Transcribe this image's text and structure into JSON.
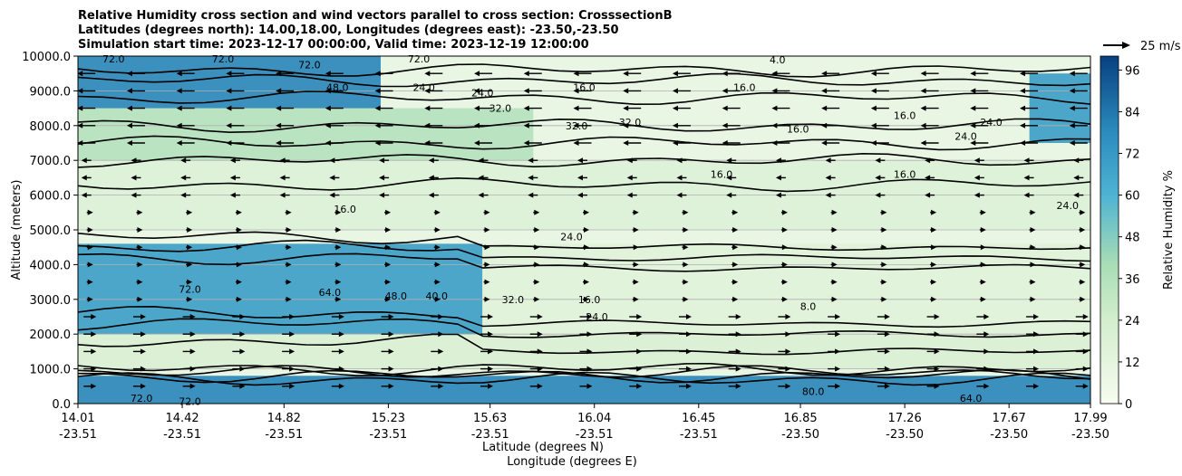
{
  "chart_data": {
    "type": "heatmap",
    "title_lines": [
      "Relative Humidity cross section and wind vectors parallel to cross section: CrosssectionB",
      "Latitudes (degrees north): 14.00,18.00, Longitudes (degrees east): -23.50,-23.50",
      "Simulation start time: 2023-12-17 00:00:00, Valid time: 2023-12-19 12:00:00"
    ],
    "xlabel_lat": "Latitude (degrees N)",
    "xlabel_lon": "Longitude (degrees E)",
    "ylabel": "Altitude (meters)",
    "xlim": [
      14.01,
      17.99
    ],
    "ylim": [
      0,
      10000
    ],
    "grid": "horizontal",
    "x_ticks": [
      {
        "lat": "14.01",
        "lon": "-23.51"
      },
      {
        "lat": "14.42",
        "lon": "-23.51"
      },
      {
        "lat": "14.82",
        "lon": "-23.51"
      },
      {
        "lat": "15.23",
        "lon": "-23.51"
      },
      {
        "lat": "15.63",
        "lon": "-23.51"
      },
      {
        "lat": "16.04",
        "lon": "-23.51"
      },
      {
        "lat": "16.45",
        "lon": "-23.51"
      },
      {
        "lat": "16.85",
        "lon": "-23.50"
      },
      {
        "lat": "17.26",
        "lon": "-23.50"
      },
      {
        "lat": "17.67",
        "lon": "-23.50"
      },
      {
        "lat": "17.99",
        "lon": "-23.50"
      }
    ],
    "y_ticks": [
      "0.0",
      "1000.0",
      "2000.0",
      "3000.0",
      "4000.0",
      "5000.0",
      "6000.0",
      "7000.0",
      "8000.0",
      "9000.0",
      "10000.0"
    ],
    "colorbar": {
      "label": "Relative Humidity %",
      "range": [
        0,
        100
      ],
      "ticks": [
        "0",
        "12",
        "24",
        "36",
        "48",
        "60",
        "72",
        "84",
        "96"
      ]
    },
    "quiver_key": {
      "label": "25 m/s",
      "speed": 25
    },
    "humidity_bands": [
      {
        "alt_range": [
          0,
          800
        ],
        "lat_range": [
          14.01,
          17.99
        ],
        "rh": 80
      },
      {
        "alt_range": [
          1000,
          2000
        ],
        "lat_range": [
          14.01,
          17.99
        ],
        "rh": 20
      },
      {
        "alt_range": [
          2000,
          4600
        ],
        "lat_range": [
          14.01,
          15.6
        ],
        "rh": 70
      },
      {
        "alt_range": [
          2000,
          4600
        ],
        "lat_range": [
          15.6,
          17.99
        ],
        "rh": 15
      },
      {
        "alt_range": [
          5000,
          7000
        ],
        "lat_range": [
          14.01,
          17.99
        ],
        "rh": 18
      },
      {
        "alt_range": [
          7000,
          8500
        ],
        "lat_range": [
          14.01,
          15.8
        ],
        "rh": 35
      },
      {
        "alt_range": [
          8500,
          10000
        ],
        "lat_range": [
          14.01,
          15.2
        ],
        "rh": 80
      },
      {
        "alt_range": [
          7500,
          9500
        ],
        "lat_range": [
          17.75,
          17.99
        ],
        "rh": 70
      }
    ],
    "contour_labels": [
      {
        "text": "72.0",
        "lat": 14.15,
        "alt": 9920
      },
      {
        "text": "72.0",
        "lat": 14.58,
        "alt": 9920
      },
      {
        "text": "72.0",
        "lat": 14.92,
        "alt": 9750
      },
      {
        "text": "72.0",
        "lat": 15.35,
        "alt": 9920
      },
      {
        "text": "4.0",
        "lat": 16.76,
        "alt": 9900
      },
      {
        "text": "48.0",
        "lat": 15.03,
        "alt": 9100
      },
      {
        "text": "24.0",
        "lat": 15.37,
        "alt": 9100
      },
      {
        "text": "24.0",
        "lat": 15.6,
        "alt": 8950
      },
      {
        "text": "16.0",
        "lat": 16.0,
        "alt": 9100
      },
      {
        "text": "16.0",
        "lat": 16.63,
        "alt": 9100
      },
      {
        "text": "32.0",
        "lat": 15.67,
        "alt": 8500
      },
      {
        "text": "32.0",
        "lat": 15.97,
        "alt": 8000
      },
      {
        "text": "32.0",
        "lat": 16.18,
        "alt": 8100
      },
      {
        "text": "16.0",
        "lat": 16.84,
        "alt": 7900
      },
      {
        "text": "16.0",
        "lat": 17.26,
        "alt": 8300
      },
      {
        "text": "16.0",
        "lat": 16.54,
        "alt": 6600
      },
      {
        "text": "16.0",
        "lat": 17.26,
        "alt": 6600
      },
      {
        "text": "24.0",
        "lat": 17.6,
        "alt": 8100
      },
      {
        "text": "24.0",
        "lat": 17.5,
        "alt": 7700
      },
      {
        "text": "24.0",
        "lat": 17.9,
        "alt": 5700
      },
      {
        "text": "16.0",
        "lat": 15.06,
        "alt": 5600
      },
      {
        "text": "24.0",
        "lat": 15.95,
        "alt": 4800
      },
      {
        "text": "72.0",
        "lat": 14.45,
        "alt": 3300
      },
      {
        "text": "64.0",
        "lat": 15.0,
        "alt": 3200
      },
      {
        "text": "48.0",
        "lat": 15.26,
        "alt": 3100
      },
      {
        "text": "40.0",
        "lat": 15.42,
        "alt": 3100
      },
      {
        "text": "32.0",
        "lat": 15.72,
        "alt": 3000
      },
      {
        "text": "16.0",
        "lat": 16.02,
        "alt": 3000
      },
      {
        "text": "24.0",
        "lat": 16.05,
        "alt": 2500
      },
      {
        "text": "8.0",
        "lat": 16.88,
        "alt": 2800
      },
      {
        "text": "72.0",
        "lat": 14.26,
        "alt": 150
      },
      {
        "text": "72.0",
        "lat": 14.45,
        "alt": 70
      },
      {
        "text": "80.0",
        "lat": 16.9,
        "alt": 350
      },
      {
        "text": "64.0",
        "lat": 17.52,
        "alt": 150
      }
    ]
  }
}
